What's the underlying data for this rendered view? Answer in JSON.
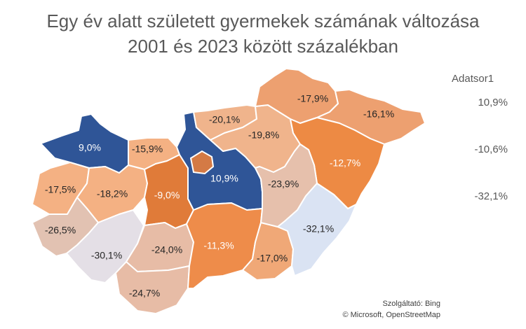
{
  "chart_data": {
    "type": "map",
    "title": "Egy év alatt született gyermekek számának változása",
    "subtitle": "2001 és 2023 között százalékban",
    "legend": {
      "title": "Adatsor1",
      "entries": [
        "10,9%",
        "-10,6%",
        "-32,1%"
      ],
      "colors": [
        "#2f5597",
        "#ed7d31",
        "#dae3f3"
      ]
    },
    "regions": [
      {
        "label": "9,0%",
        "value": 9.0,
        "color": "#2f5597"
      },
      {
        "label": "-15,9%",
        "value": -15.9,
        "color": "#f4b183"
      },
      {
        "label": "-17,5%",
        "value": -17.5,
        "color": "#f4b183"
      },
      {
        "label": "-18,2%",
        "value": -18.2,
        "color": "#f4b183"
      },
      {
        "label": "-26,5%",
        "value": -26.5,
        "color": "#e2c2b2"
      },
      {
        "label": "-30,1%",
        "value": -30.1,
        "color": "#e4dfe6"
      },
      {
        "label": "-9,0%",
        "value": -9.0,
        "color": "#e07b39"
      },
      {
        "label": "-24,0%",
        "value": -24.0,
        "color": "#e7bca6"
      },
      {
        "label": "-24,7%",
        "value": -24.7,
        "color": "#e7bca6"
      },
      {
        "label": "10,9%",
        "value": 10.9,
        "color": "#2f5597"
      },
      {
        "label": "-11,3%",
        "value": -11.3,
        "color": "#ee8c4a"
      },
      {
        "label": "-17,0%",
        "value": -17.0,
        "color": "#f0a877"
      },
      {
        "label": "-20,1%",
        "value": -20.1,
        "color": "#f0b48c"
      },
      {
        "label": "-19,8%",
        "value": -19.8,
        "color": "#f0b48c"
      },
      {
        "label": "-17,9%",
        "value": -17.9,
        "color": "#eda070"
      },
      {
        "label": "-16,1%",
        "value": -16.1,
        "color": "#eda070"
      },
      {
        "label": "-12,7%",
        "value": -12.7,
        "color": "#ed8a44"
      },
      {
        "label": "-23,9%",
        "value": -23.9,
        "color": "#e6c0ac"
      },
      {
        "label": "-32,1%",
        "value": -32.1,
        "color": "#dae3f3"
      }
    ],
    "attribution": [
      "Szolgáltató: Bing",
      "© Microsoft, OpenStreetMap"
    ]
  }
}
